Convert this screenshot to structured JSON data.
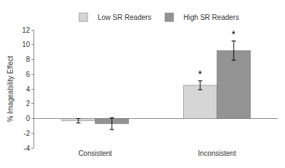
{
  "chart_data": {
    "type": "bar",
    "categories": [
      "Consistent",
      "Inconsistent"
    ],
    "series": [
      {
        "name": "Low SR Readers",
        "color": "#d6d6d6",
        "values": [
          -0.3,
          4.5
        ],
        "errors": [
          0.3,
          0.6
        ]
      },
      {
        "name": "High SR Readers",
        "color": "#939393",
        "values": [
          -0.7,
          9.2
        ],
        "errors": [
          0.8,
          1.3
        ]
      }
    ],
    "y_label": "% Imageability Effect",
    "ylim": [
      -4,
      12
    ],
    "yticks": [
      -4,
      -2,
      0,
      2,
      4,
      6,
      8,
      10,
      12
    ],
    "grid": false,
    "legend": "top",
    "annotations": [
      {
        "text": "*",
        "category": "Inconsistent",
        "series": "Low SR Readers"
      },
      {
        "text": "*",
        "category": "Inconsistent",
        "series": "High SR Readers"
      }
    ]
  }
}
